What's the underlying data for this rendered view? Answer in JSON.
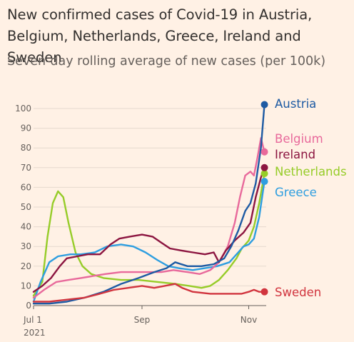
{
  "title": "New confirmed cases of Covid-19 in Austria, Belgium, Netherlands, Greece, Ireland and Sweden",
  "subtitle": "Seven-day rolling average of new cases (per 100k)",
  "chart_data": {
    "type": "line",
    "ylim": [
      0,
      100
    ],
    "y_ticks": [
      0,
      10,
      20,
      30,
      40,
      50,
      60,
      70,
      80,
      90,
      100
    ],
    "x_ticks": [
      {
        "date": "2021-07-01",
        "label": "Jul 1",
        "sublabel": "2021"
      },
      {
        "date": "2021-09-01",
        "label": "Sep",
        "sublabel": ""
      },
      {
        "date": "2021-11-01",
        "label": "Nov",
        "sublabel": ""
      }
    ],
    "xlim": [
      "2021-07-01",
      "2021-11-11"
    ],
    "grid": "horizontal",
    "series": [
      {
        "name": "Netherlands",
        "color": "#96cc28",
        "end_label": "Netherlands",
        "points": [
          [
            "2021-07-01",
            5
          ],
          [
            "2021-07-06",
            12
          ],
          [
            "2021-07-09",
            35
          ],
          [
            "2021-07-12",
            52
          ],
          [
            "2021-07-15",
            58
          ],
          [
            "2021-07-18",
            55
          ],
          [
            "2021-07-21",
            42
          ],
          [
            "2021-07-25",
            27
          ],
          [
            "2021-07-29",
            20
          ],
          [
            "2021-08-03",
            16
          ],
          [
            "2021-08-10",
            14
          ],
          [
            "2021-08-20",
            13
          ],
          [
            "2021-08-30",
            13
          ],
          [
            "2021-09-10",
            12
          ],
          [
            "2021-09-20",
            11
          ],
          [
            "2021-09-28",
            10
          ],
          [
            "2021-10-05",
            9
          ],
          [
            "2021-10-10",
            10
          ],
          [
            "2021-10-15",
            13
          ],
          [
            "2021-10-20",
            18
          ],
          [
            "2021-10-25",
            24
          ],
          [
            "2021-10-28",
            29
          ],
          [
            "2021-11-01",
            33
          ],
          [
            "2021-11-04",
            40
          ],
          [
            "2021-11-07",
            52
          ],
          [
            "2021-11-10",
            67
          ]
        ]
      },
      {
        "name": "Greece",
        "color": "#2e9ee0",
        "end_label": "Greece",
        "points": [
          [
            "2021-07-01",
            2
          ],
          [
            "2021-07-05",
            12
          ],
          [
            "2021-07-10",
            22
          ],
          [
            "2021-07-15",
            25
          ],
          [
            "2021-07-22",
            26
          ],
          [
            "2021-07-28",
            26
          ],
          [
            "2021-08-05",
            27
          ],
          [
            "2021-08-12",
            30
          ],
          [
            "2021-08-20",
            31
          ],
          [
            "2021-08-27",
            30
          ],
          [
            "2021-09-03",
            27
          ],
          [
            "2021-09-10",
            23
          ],
          [
            "2021-09-16",
            20
          ],
          [
            "2021-09-22",
            19
          ],
          [
            "2021-09-30",
            18
          ],
          [
            "2021-10-07",
            19
          ],
          [
            "2021-10-14",
            20
          ],
          [
            "2021-10-21",
            22
          ],
          [
            "2021-10-26",
            27
          ],
          [
            "2021-10-29",
            30
          ],
          [
            "2021-11-01",
            31
          ],
          [
            "2021-11-04",
            34
          ],
          [
            "2021-11-07",
            45
          ],
          [
            "2021-11-10",
            63
          ]
        ]
      },
      {
        "name": "Belgium",
        "color": "#e8699b",
        "end_label": "Belgium",
        "points": [
          [
            "2021-07-01",
            4
          ],
          [
            "2021-07-07",
            8
          ],
          [
            "2021-07-14",
            12
          ],
          [
            "2021-07-21",
            13
          ],
          [
            "2021-07-28",
            14
          ],
          [
            "2021-08-04",
            15
          ],
          [
            "2021-08-11",
            16
          ],
          [
            "2021-08-20",
            17
          ],
          [
            "2021-08-28",
            17
          ],
          [
            "2021-09-05",
            17
          ],
          [
            "2021-09-12",
            17
          ],
          [
            "2021-09-19",
            18
          ],
          [
            "2021-09-27",
            17
          ],
          [
            "2021-10-04",
            16
          ],
          [
            "2021-10-10",
            18
          ],
          [
            "2021-10-15",
            22
          ],
          [
            "2021-10-20",
            30
          ],
          [
            "2021-10-24",
            42
          ],
          [
            "2021-10-27",
            55
          ],
          [
            "2021-10-30",
            66
          ],
          [
            "2021-11-02",
            68
          ],
          [
            "2021-11-04",
            66
          ],
          [
            "2021-11-06",
            75
          ],
          [
            "2021-11-08",
            85
          ],
          [
            "2021-11-10",
            78
          ]
        ]
      },
      {
        "name": "Ireland",
        "color": "#8c1540",
        "end_label": "Ireland",
        "points": [
          [
            "2021-07-01",
            7
          ],
          [
            "2021-07-06",
            10
          ],
          [
            "2021-07-11",
            14
          ],
          [
            "2021-07-16",
            20
          ],
          [
            "2021-07-20",
            24
          ],
          [
            "2021-07-26",
            25
          ],
          [
            "2021-08-01",
            26
          ],
          [
            "2021-08-08",
            26
          ],
          [
            "2021-08-14",
            31
          ],
          [
            "2021-08-19",
            34
          ],
          [
            "2021-08-25",
            35
          ],
          [
            "2021-09-01",
            36
          ],
          [
            "2021-09-07",
            35
          ],
          [
            "2021-09-12",
            32
          ],
          [
            "2021-09-17",
            29
          ],
          [
            "2021-09-23",
            28
          ],
          [
            "2021-09-30",
            27
          ],
          [
            "2021-10-07",
            26
          ],
          [
            "2021-10-12",
            27
          ],
          [
            "2021-10-15",
            22
          ],
          [
            "2021-10-19",
            28
          ],
          [
            "2021-10-24",
            33
          ],
          [
            "2021-10-29",
            37
          ],
          [
            "2021-11-02",
            42
          ],
          [
            "2021-11-05",
            55
          ],
          [
            "2021-11-08",
            65
          ],
          [
            "2021-11-10",
            70
          ]
        ]
      },
      {
        "name": "Austria",
        "color": "#1d5aa3",
        "end_label": "Austria",
        "points": [
          [
            "2021-07-01",
            1
          ],
          [
            "2021-07-10",
            1
          ],
          [
            "2021-07-20",
            2
          ],
          [
            "2021-07-30",
            4
          ],
          [
            "2021-08-10",
            7
          ],
          [
            "2021-08-20",
            11
          ],
          [
            "2021-08-30",
            14
          ],
          [
            "2021-09-08",
            17
          ],
          [
            "2021-09-15",
            19
          ],
          [
            "2021-09-20",
            22
          ],
          [
            "2021-09-27",
            20
          ],
          [
            "2021-10-05",
            20
          ],
          [
            "2021-10-12",
            21
          ],
          [
            "2021-10-18",
            24
          ],
          [
            "2021-10-22",
            30
          ],
          [
            "2021-10-26",
            38
          ],
          [
            "2021-10-30",
            48
          ],
          [
            "2021-11-02",
            52
          ],
          [
            "2021-11-05",
            62
          ],
          [
            "2021-11-08",
            80
          ],
          [
            "2021-11-10",
            102
          ]
        ]
      },
      {
        "name": "Sweden",
        "color": "#d1343e",
        "end_label": "Sweden",
        "points": [
          [
            "2021-07-01",
            2
          ],
          [
            "2021-07-10",
            2
          ],
          [
            "2021-07-20",
            3
          ],
          [
            "2021-07-30",
            4
          ],
          [
            "2021-08-08",
            6
          ],
          [
            "2021-08-16",
            8
          ],
          [
            "2021-08-24",
            9
          ],
          [
            "2021-09-01",
            10
          ],
          [
            "2021-09-08",
            9
          ],
          [
            "2021-09-14",
            10
          ],
          [
            "2021-09-20",
            11
          ],
          [
            "2021-09-24",
            9
          ],
          [
            "2021-09-30",
            7
          ],
          [
            "2021-10-10",
            6
          ],
          [
            "2021-10-20",
            6
          ],
          [
            "2021-10-28",
            6
          ],
          [
            "2021-11-01",
            7
          ],
          [
            "2021-11-04",
            8
          ],
          [
            "2021-11-07",
            7
          ],
          [
            "2021-11-10",
            7
          ]
        ]
      }
    ],
    "label_order": [
      "Austria",
      "Belgium",
      "Ireland",
      "Netherlands",
      "Greece",
      "Sweden"
    ]
  }
}
